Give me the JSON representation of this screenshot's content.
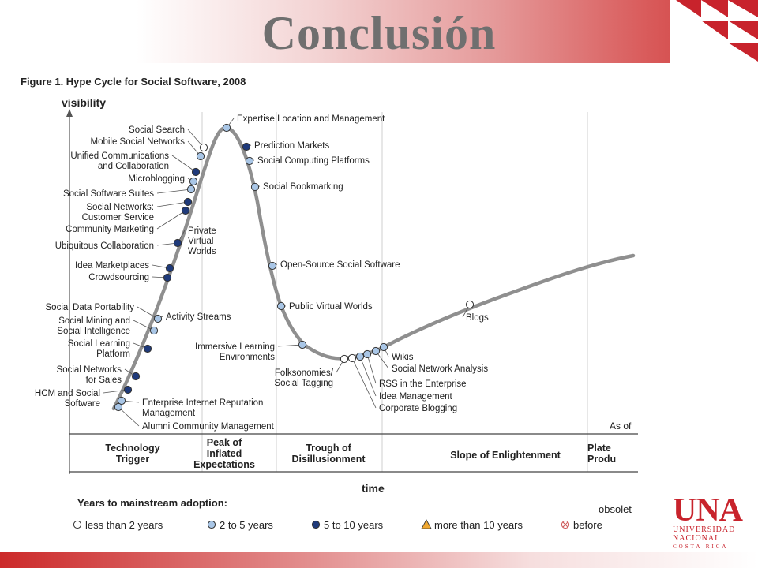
{
  "slide": {
    "title": "Conclusión",
    "accent_color": "#cc3333"
  },
  "figure": {
    "caption": "Figure 1. Hype Cycle for Social Software, 2008",
    "y_axis_label": "visibility",
    "x_axis_label": "time",
    "as_of": "As of",
    "phases": [
      {
        "label_lines": [
          "Technology",
          "Trigger"
        ]
      },
      {
        "label_lines": [
          "Peak of",
          "Inflated",
          "Expectations"
        ]
      },
      {
        "label_lines": [
          "Trough of",
          "Disillusionment"
        ]
      },
      {
        "label_lines": [
          "Slope of Enlightenment"
        ]
      },
      {
        "label_lines": [
          "Plate",
          "Produ"
        ]
      }
    ],
    "legend": {
      "title": "Years to mainstream adoption:",
      "items": [
        {
          "label": "less than 2 years",
          "marker": "open-circle"
        },
        {
          "label": "2 to 5 years",
          "marker": "light-circle"
        },
        {
          "label": "5 to 10 years",
          "marker": "dark-circle"
        },
        {
          "label": "more than 10 years",
          "marker": "triangle"
        },
        {
          "label": "before",
          "label_above": "obsolet",
          "marker": "crossed-circle"
        }
      ]
    },
    "technologies": [
      {
        "name": "Social Search",
        "adoption": "less than 2 years",
        "label_lines": [
          "Social Search"
        ]
      },
      {
        "name": "Mobile Social Networks",
        "adoption": "2 to 5 years",
        "label_lines": [
          "Mobile Social Networks"
        ]
      },
      {
        "name": "Unified Communications and Collaboration",
        "adoption": "5 to 10 years",
        "label_lines": [
          "Unified Communications",
          "and Collaboration"
        ]
      },
      {
        "name": "Microblogging",
        "adoption": "2 to 5 years",
        "label_lines": [
          "Microblogging"
        ]
      },
      {
        "name": "Social Software Suites",
        "adoption": "2 to 5 years",
        "label_lines": [
          "Social Software Suites"
        ]
      },
      {
        "name": "Social Networks: Customer Service",
        "adoption": "5 to 10 years",
        "label_lines": [
          "Social Networks:",
          "Customer Service"
        ]
      },
      {
        "name": "Community Marketing",
        "adoption": "5 to 10 years",
        "label_lines": [
          "Community Marketing"
        ]
      },
      {
        "name": "Ubiquitous Collaboration",
        "adoption": "5 to 10 years",
        "label_lines": [
          "Ubiquitous Collaboration"
        ]
      },
      {
        "name": "Private Virtual Worlds",
        "adoption": "2 to 5 years",
        "label_lines": [
          "Private",
          "Virtual",
          "Worlds"
        ]
      },
      {
        "name": "Idea Marketplaces",
        "adoption": "5 to 10 years",
        "label_lines": [
          "Idea Marketplaces"
        ]
      },
      {
        "name": "Crowdsourcing",
        "adoption": "5 to 10 years",
        "label_lines": [
          "Crowdsourcing"
        ]
      },
      {
        "name": "Social Data Portability",
        "adoption": "2 to 5 years",
        "label_lines": [
          "Social Data Portability"
        ]
      },
      {
        "name": "Activity Streams",
        "adoption": "2 to 5 years",
        "label_lines": [
          "Activity Streams"
        ]
      },
      {
        "name": "Social Mining and Social Intelligence",
        "adoption": "2 to 5 years",
        "label_lines": [
          "Social Mining and",
          "Social Intelligence"
        ]
      },
      {
        "name": "Social Learning Platform",
        "adoption": "5 to 10 years",
        "label_lines": [
          "Social Learning",
          "Platform"
        ]
      },
      {
        "name": "Social Networks for Sales",
        "adoption": "5 to 10 years",
        "label_lines": [
          "Social Networks",
          "for Sales"
        ]
      },
      {
        "name": "HCM and Social Software",
        "adoption": "5 to 10 years",
        "label_lines": [
          "HCM and Social",
          "Software"
        ]
      },
      {
        "name": "Enterprise Internet Reputation Management",
        "adoption": "2 to 5 years",
        "label_lines": [
          "Enterprise Internet Reputation",
          "Management"
        ]
      },
      {
        "name": "Alumni Community Management",
        "adoption": "2 to 5 years",
        "label_lines": [
          "Alumni Community Management"
        ]
      },
      {
        "name": "Expertise Location and Management",
        "adoption": "2 to 5 years",
        "label_lines": [
          "Expertise Location and Management"
        ]
      },
      {
        "name": "Prediction Markets",
        "adoption": "5 to 10 years",
        "label_lines": [
          "Prediction Markets"
        ]
      },
      {
        "name": "Social Computing Platforms",
        "adoption": "2 to 5 years",
        "label_lines": [
          "Social Computing Platforms"
        ]
      },
      {
        "name": "Social Bookmarking",
        "adoption": "2 to 5 years",
        "label_lines": [
          "Social Bookmarking"
        ]
      },
      {
        "name": "Open-Source Social Software",
        "adoption": "2 to 5 years",
        "label_lines": [
          "Open-Source Social Software"
        ]
      },
      {
        "name": "Public Virtual Worlds",
        "adoption": "2 to 5 years",
        "label_lines": [
          "Public Virtual Worlds"
        ]
      },
      {
        "name": "Immersive Learning Environments",
        "adoption": "2 to 5 years",
        "label_lines": [
          "Immersive Learning",
          "Environments"
        ]
      },
      {
        "name": "Folksonomies/ Social Tagging",
        "adoption": "less than 2 years",
        "label_lines": [
          "Folksonomies/",
          "Social Tagging"
        ]
      },
      {
        "name": "Corporate Blogging",
        "adoption": "less than 2 years",
        "label_lines": [
          "Corporate Blogging"
        ]
      },
      {
        "name": "Idea Management",
        "adoption": "2 to 5 years",
        "label_lines": [
          "Idea Management"
        ]
      },
      {
        "name": "RSS in the Enterprise",
        "adoption": "2 to 5 years",
        "label_lines": [
          "RSS in the Enterprise"
        ]
      },
      {
        "name": "Social Network Analysis",
        "adoption": "2 to 5 years",
        "label_lines": [
          "Social Network Analysis"
        ]
      },
      {
        "name": "Wikis",
        "adoption": "2 to 5 years",
        "label_lines": [
          "Wikis"
        ]
      },
      {
        "name": "Blogs",
        "adoption": "less than 2 years",
        "label_lines": [
          "Blogs"
        ]
      }
    ],
    "marker_colors": {
      "less than 2 years": "#ffffff",
      "2 to 5 years": "#a9c6e6",
      "5 to 10 years": "#1f3a7a",
      "more than 10 years": "#f0a830",
      "obsolete": "#ffffff"
    }
  },
  "logo": {
    "acronym": "UNA",
    "line1": "UNIVERSIDAD",
    "line2": "NACIONAL",
    "line3": "COSTA RICA"
  }
}
